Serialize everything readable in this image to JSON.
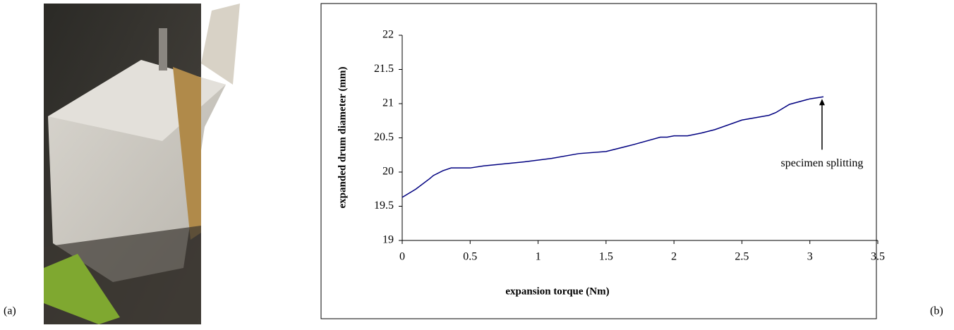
{
  "panel_labels": [
    "(a)",
    "(b)"
  ],
  "chart_data": {
    "type": "line",
    "x_label": "expansion torque (Nm)",
    "y_label": "expanded drum diameter (mm)",
    "annotation": "specimen splitting",
    "x": [
      0,
      0.1,
      0.2,
      0.23,
      0.3,
      0.36,
      0.5,
      0.6,
      0.9,
      1.1,
      1.3,
      1.5,
      1.7,
      1.9,
      1.95,
      2,
      2.1,
      2.2,
      2.3,
      2.5,
      2.7,
      2.75,
      2.85,
      3,
      3.1
    ],
    "series": [
      {
        "color": "#000080",
        "values": [
          19.63,
          19.75,
          19.9,
          19.95,
          20.02,
          20.06,
          20.06,
          20.09,
          20.15,
          20.2,
          20.27,
          20.3,
          20.4,
          20.51,
          20.51,
          20.53,
          20.53,
          20.57,
          20.62,
          20.76,
          20.83,
          20.87,
          20.99,
          21.07,
          21.1
        ]
      }
    ],
    "xlim": [
      0,
      3.5
    ],
    "xticks": [
      0,
      0.5,
      1,
      1.5,
      2,
      2.5,
      3,
      3.5
    ],
    "ylim": [
      19,
      22
    ],
    "yticks": [
      19,
      19.5,
      20,
      20.5,
      21,
      21.5,
      22
    ]
  }
}
